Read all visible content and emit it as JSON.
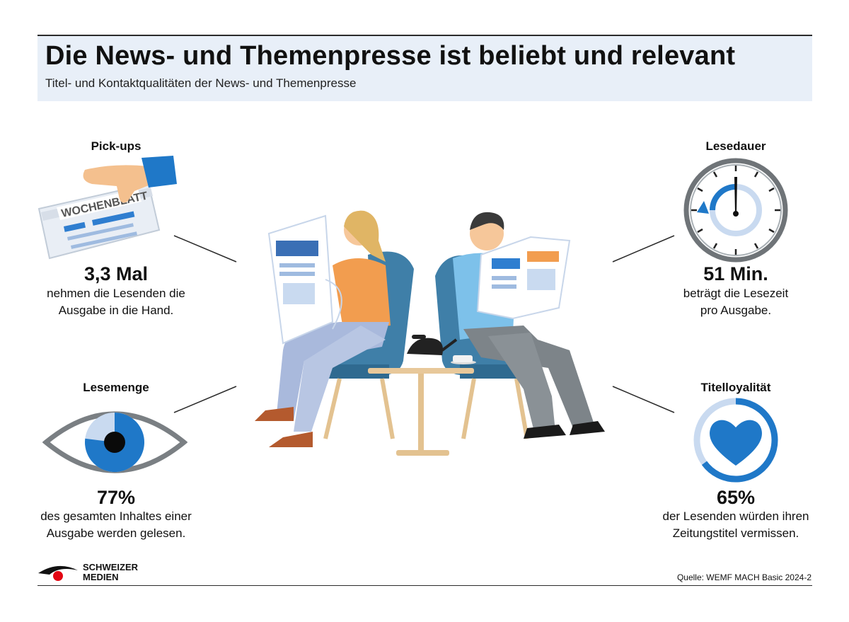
{
  "header": {
    "title": "Die News- und Themenpresse ist beliebt und relevant",
    "subtitle": "Titel- und Kontaktqualitäten der News- und Themenpresse"
  },
  "stats": {
    "pickups": {
      "heading": "Pick-ups",
      "value": "3,3 Mal",
      "description": "nehmen die Lesenden die\nAusgabe in die Hand.",
      "newspaper_label": "WOCHENBLATT",
      "icon": "hand-newspaper-icon"
    },
    "lesedauer": {
      "heading": "Lesedauer",
      "value": "51 Min.",
      "description": "beträgt die Lesezeit\npro Ausgabe.",
      "icon": "clock-icon"
    },
    "lesemenge": {
      "heading": "Lesemenge",
      "value": "77%",
      "description": "des gesamten Inhaltes einer\nAusgabe werden gelesen.",
      "fill": 0.77,
      "icon": "eye-icon"
    },
    "titelloyalitaet": {
      "heading": "Titelloyalität",
      "value": "65%",
      "description": "der Lesenden würden ihren\nZeitungstitel vermissen.",
      "fill": 0.65,
      "icon": "heart-icon"
    }
  },
  "footer": {
    "logo_text": "SCHWEIZER\nMEDIEN",
    "source": "Quelle: WEMF MACH Basic 2024-2"
  },
  "colors": {
    "accent_blue": "#1f78c8",
    "light_blue": "#c9daf0",
    "header_band": "#e8eff8",
    "logo_red": "#e30613"
  }
}
